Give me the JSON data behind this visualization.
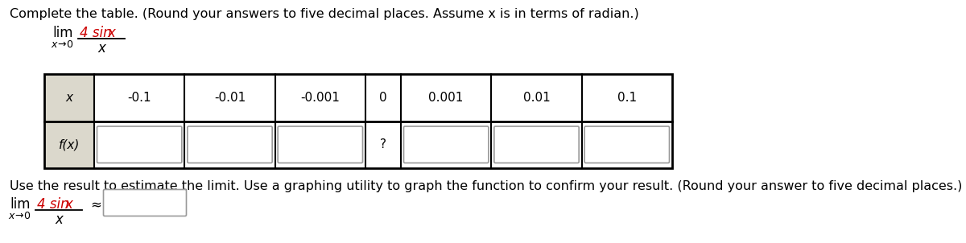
{
  "title": "Complete the table. (Round your answers to five decimal places. Assume x is in terms of radian.)",
  "x_header": "x",
  "fx_header": "f(x)",
  "x_values": [
    "-0.1",
    "-0.01",
    "-0.001",
    "0",
    "0.001",
    "0.01",
    "0.1"
  ],
  "zero_cell_content": "?",
  "bottom_text": "Use the result to estimate the limit. Use a graphing utility to graph the function to confirm your result. (Round your answer to five decimal places.)",
  "bottom_approx": "≈",
  "bg_color": "#ffffff",
  "header_bg": "#dbd8cc",
  "table_border": "#000000",
  "input_box_bg": "#ffffff",
  "input_box_border": "#999999",
  "fraction_num_color": "#cc0000",
  "text_color": "#000000",
  "font_size_title": 11.5,
  "font_size_table": 11,
  "font_size_limit": 12
}
